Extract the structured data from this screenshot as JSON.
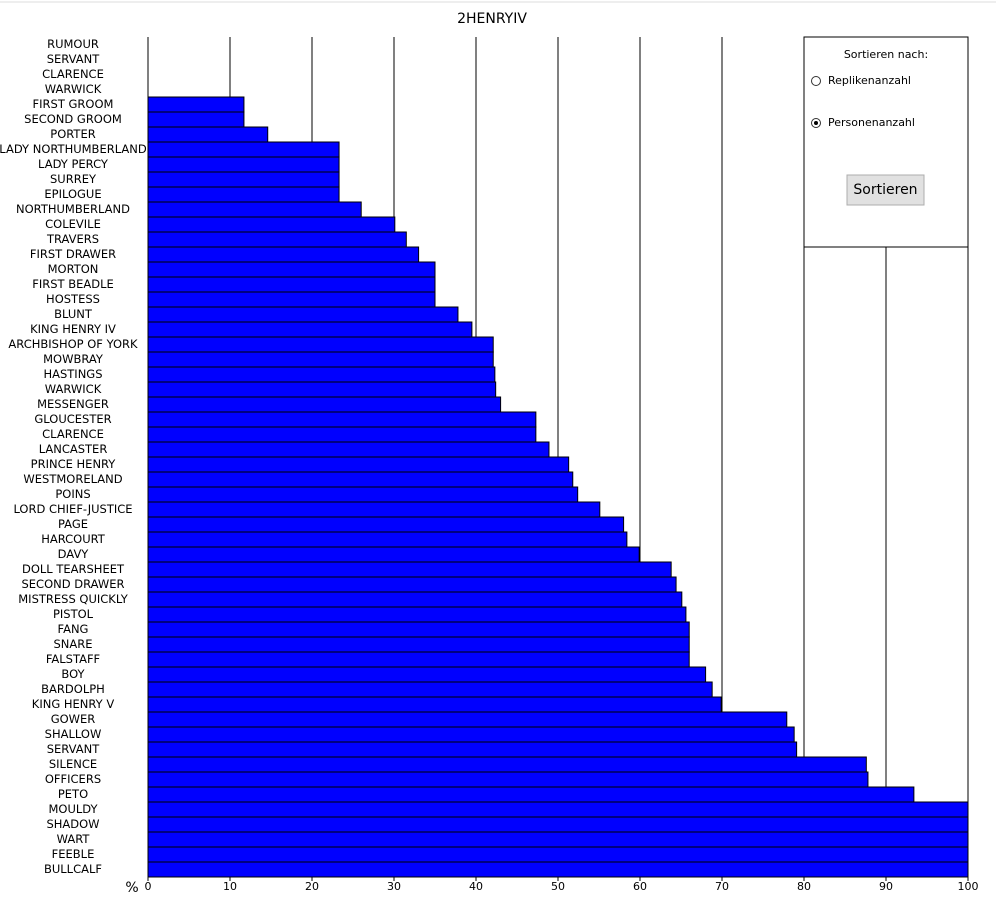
{
  "chart_data": {
    "type": "barh",
    "title": "2HENRYIV",
    "xlabel": "%",
    "categories": [
      "RUMOUR",
      "SERVANT",
      "CLARENCE",
      "WARWICK",
      "FIRST GROOM",
      "SECOND GROOM",
      "PORTER",
      "LADY NORTHUMBERLAND",
      "LADY PERCY",
      "SURREY",
      "EPILOGUE",
      "NORTHUMBERLAND",
      "COLEVILE",
      "TRAVERS",
      "FIRST DRAWER",
      "MORTON",
      "FIRST BEADLE",
      "HOSTESS",
      "BLUNT",
      "KING HENRY IV",
      "ARCHBISHOP OF YORK",
      "MOWBRAY",
      "HASTINGS",
      "WARWICK",
      "MESSENGER",
      "GLOUCESTER",
      "CLARENCE",
      "LANCASTER",
      "PRINCE HENRY",
      "WESTMORELAND",
      "POINS",
      "LORD CHIEF-JUSTICE",
      "PAGE",
      "HARCOURT",
      "DAVY",
      "DOLL TEARSHEET",
      "SECOND DRAWER",
      "MISTRESS QUICKLY",
      "PISTOL",
      "FANG",
      "SNARE",
      "FALSTAFF",
      "BOY",
      "BARDOLPH",
      "KING HENRY V",
      "GOWER",
      "SHALLOW",
      "SERVANT",
      "SILENCE",
      "OFFICERS",
      "PETO",
      "MOULDY",
      "SHADOW",
      "WART",
      "FEEBLE",
      "BULLCALF"
    ],
    "values": [
      0,
      0,
      0,
      0,
      11.7,
      11.7,
      14.6,
      23.3,
      23.3,
      23.3,
      23.3,
      26.0,
      30.1,
      31.5,
      33.0,
      35.0,
      35.0,
      35.0,
      37.8,
      39.5,
      42.1,
      42.1,
      42.3,
      42.4,
      43.0,
      47.3,
      47.3,
      48.9,
      51.3,
      51.8,
      52.4,
      55.1,
      58.0,
      58.4,
      59.9,
      63.8,
      64.4,
      65.1,
      65.6,
      66.0,
      66.0,
      66.0,
      68.0,
      68.8,
      69.9,
      77.9,
      78.8,
      79.1,
      87.6,
      87.8,
      93.4,
      100,
      100,
      100,
      100,
      100
    ],
    "color": "#0000ff",
    "xlim": [
      0,
      100
    ],
    "xticks": [
      0,
      10,
      20,
      30,
      40,
      50,
      60,
      70,
      80,
      90,
      100
    ],
    "grid": true
  },
  "controls": {
    "heading": "Sortieren nach:",
    "options": [
      {
        "label": "Replikenanzahl",
        "checked": false
      },
      {
        "label": "Personenanzahl",
        "checked": true
      }
    ],
    "button": "Sortieren"
  }
}
